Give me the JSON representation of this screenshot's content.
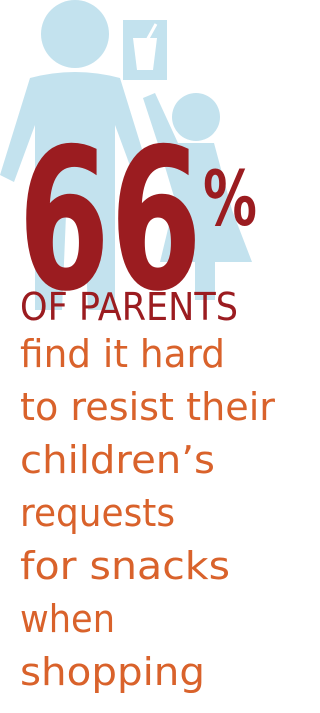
{
  "stat": {
    "number": "66",
    "unit": "%"
  },
  "subject": "OF PARENTS",
  "lines": [
    "find it hard",
    "to resist their",
    "children’s",
    "requests",
    "for snacks",
    "when",
    "shopping"
  ]
}
